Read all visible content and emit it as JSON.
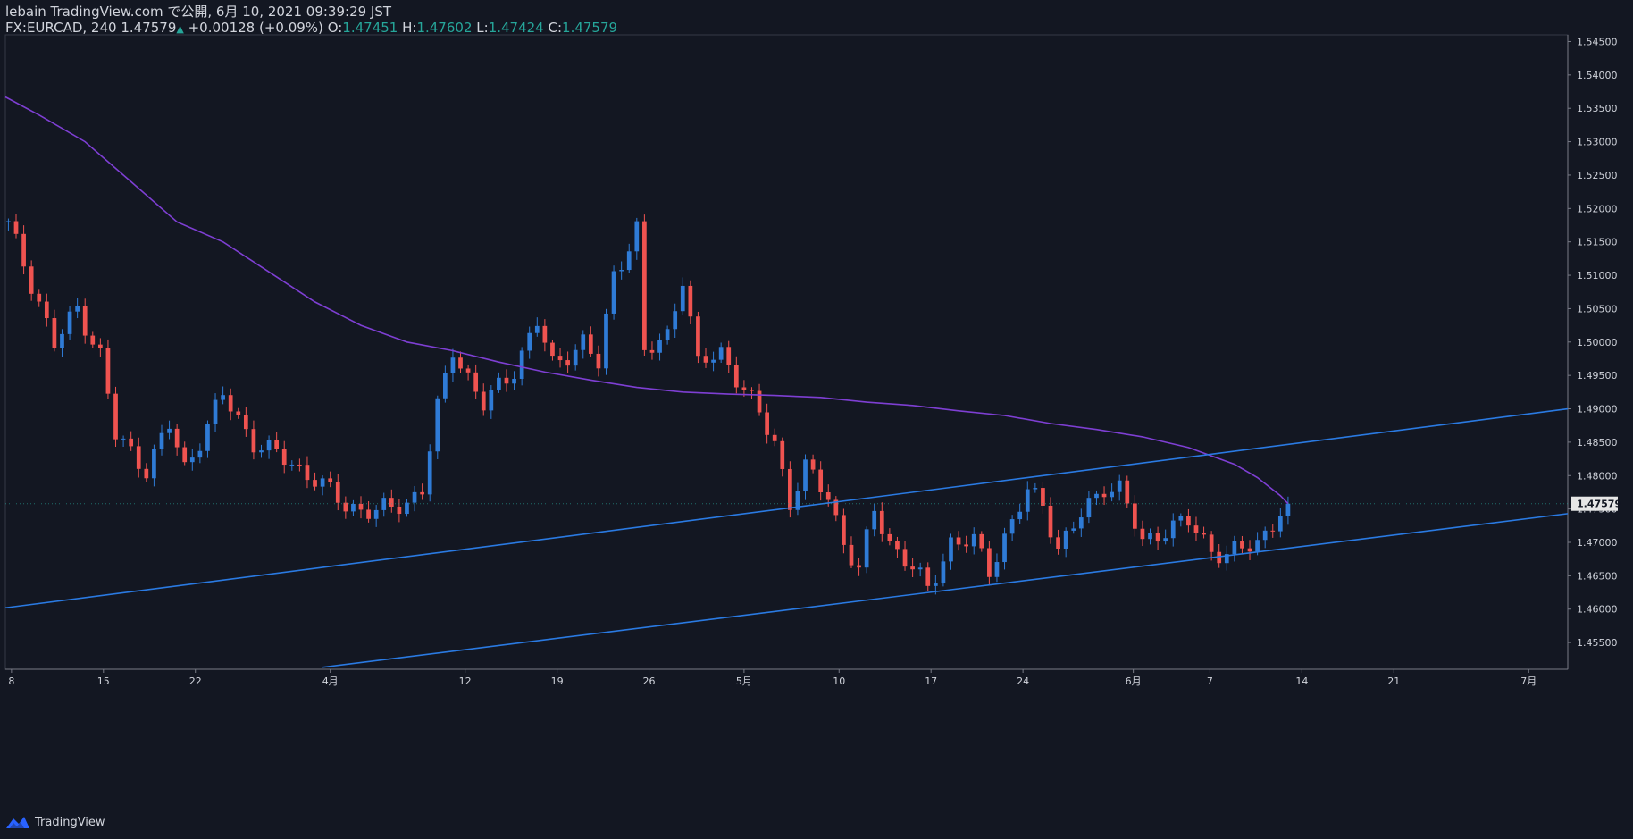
{
  "header": {
    "publish_line": "lebain TradingView.com で公開, 6月 10, 2021 09:39:29 JST",
    "symbol": "FX:EURCAD, 240",
    "last": "1.47579",
    "arrow": "▲",
    "change": "+0.00128 (+0.09%)",
    "o_label": "O:",
    "o_value": "1.47451",
    "h_label": "H:",
    "h_value": "1.47602",
    "l_label": "L:",
    "l_value": "1.47424",
    "c_label": "C:",
    "c_value": "1.47579"
  },
  "footer": {
    "brand": "TradingView"
  },
  "colors": {
    "background": "#131722",
    "up": "#2f7bd6",
    "down": "#ef5350",
    "ma": "#7e3fd3",
    "trendline": "#2a7ae2",
    "axis_text": "#d1d4dc",
    "price_label_bg": "#e6e6e6"
  },
  "chart_data": {
    "type": "candlestick",
    "symbol": "FX:EURCAD",
    "interval": "240",
    "ylim": [
      1.451,
      1.546
    ],
    "y_ticks": [
      "1.45500",
      "1.46000",
      "1.46500",
      "1.47000",
      "1.47500",
      "1.48000",
      "1.48500",
      "1.49000",
      "1.49500",
      "1.50000",
      "1.50500",
      "1.51000",
      "1.51500",
      "1.52000",
      "1.52500",
      "1.53000",
      "1.53500",
      "1.54000",
      "1.54500"
    ],
    "x_ticks": [
      {
        "label": "8",
        "x": 0.4
      },
      {
        "label": "15",
        "x": 12.4
      },
      {
        "label": "22",
        "x": 24.4
      },
      {
        "label": "4月",
        "x": 42.0
      },
      {
        "label": "12",
        "x": 59.6
      },
      {
        "label": "19",
        "x": 71.6
      },
      {
        "label": "26",
        "x": 83.6
      },
      {
        "label": "5月",
        "x": 96.0
      },
      {
        "label": "10",
        "x": 108.4
      },
      {
        "label": "17",
        "x": 120.4
      },
      {
        "label": "24",
        "x": 132.4
      },
      {
        "label": "6月",
        "x": 146.8
      },
      {
        "label": "7",
        "x": 156.8
      },
      {
        "label": "14",
        "x": 168.8
      },
      {
        "label": "21",
        "x": 180.8
      },
      {
        "label": "7月",
        "x": 198.4
      }
    ],
    "x_range": [
      -0.4,
      203.5
    ],
    "last_price": "1.47579",
    "last_price_value": 1.47579,
    "trendlines": [
      {
        "name": "upper-channel-line",
        "x1": -0.4,
        "y1": 1.4602,
        "x2": 203.5,
        "y2": 1.49
      },
      {
        "name": "lower-channel-line",
        "x1": 41.0,
        "y1": 1.4513,
        "x2": 203.5,
        "y2": 1.4743
      }
    ],
    "moving_average": {
      "name": "ma",
      "points": [
        [
          -0.4,
          1.5367
        ],
        [
          4,
          1.534
        ],
        [
          10,
          1.53
        ],
        [
          16,
          1.524
        ],
        [
          22,
          1.518
        ],
        [
          28,
          1.515
        ],
        [
          34,
          1.5105
        ],
        [
          40,
          1.506
        ],
        [
          46,
          1.5025
        ],
        [
          52,
          1.5
        ],
        [
          58,
          1.4987
        ],
        [
          64,
          1.497
        ],
        [
          70,
          1.4955
        ],
        [
          76,
          1.4943
        ],
        [
          82,
          1.4932
        ],
        [
          88,
          1.4925
        ],
        [
          94,
          1.4922
        ],
        [
          100,
          1.492
        ],
        [
          106,
          1.4917
        ],
        [
          112,
          1.491
        ],
        [
          118,
          1.4905
        ],
        [
          124,
          1.4897
        ],
        [
          130,
          1.489
        ],
        [
          136,
          1.4878
        ],
        [
          142,
          1.4869
        ],
        [
          148,
          1.4858
        ],
        [
          154,
          1.4842
        ],
        [
          160,
          1.4817
        ],
        [
          163,
          1.4797
        ],
        [
          166,
          1.477
        ],
        [
          167,
          1.4758
        ]
      ]
    },
    "anchors": [
      [
        0,
        1.5175
      ],
      [
        4,
        1.506
      ],
      [
        6,
        1.4995
      ],
      [
        9,
        1.505
      ],
      [
        12,
        1.498
      ],
      [
        14,
        1.486
      ],
      [
        18,
        1.481
      ],
      [
        21,
        1.4875
      ],
      [
        23,
        1.481
      ],
      [
        28,
        1.492
      ],
      [
        32,
        1.485
      ],
      [
        36,
        1.4825
      ],
      [
        40,
        1.4795
      ],
      [
        44,
        1.4755
      ],
      [
        48,
        1.4745
      ],
      [
        52,
        1.476
      ],
      [
        54,
        1.478
      ],
      [
        56,
        1.49
      ],
      [
        58,
        1.499
      ],
      [
        62,
        1.4905
      ],
      [
        66,
        1.496
      ],
      [
        69,
        1.503
      ],
      [
        71,
        1.4965
      ],
      [
        75,
        1.5
      ],
      [
        77,
        1.4965
      ],
      [
        79,
        1.51
      ],
      [
        82,
        1.517
      ],
      [
        83,
        1.498
      ],
      [
        86,
        1.501
      ],
      [
        88,
        1.51
      ],
      [
        90,
        1.4965
      ],
      [
        93,
        1.4985
      ],
      [
        96,
        1.493
      ],
      [
        100,
        1.485
      ],
      [
        102,
        1.476
      ],
      [
        104,
        1.481
      ],
      [
        107,
        1.477
      ],
      [
        109,
        1.47
      ],
      [
        111,
        1.4655
      ],
      [
        113,
        1.475
      ],
      [
        115,
        1.47
      ],
      [
        118,
        1.466
      ],
      [
        120,
        1.463
      ],
      [
        123,
        1.47
      ],
      [
        126,
        1.47
      ],
      [
        128,
        1.466
      ],
      [
        131,
        1.473
      ],
      [
        133,
        1.4775
      ],
      [
        135,
        1.476
      ],
      [
        137,
        1.469
      ],
      [
        140,
        1.474
      ],
      [
        143,
        1.4785
      ],
      [
        145,
        1.478
      ],
      [
        148,
        1.47
      ],
      [
        151,
        1.472
      ],
      [
        154,
        1.473
      ],
      [
        157,
        1.469
      ],
      [
        159,
        1.468
      ],
      [
        163,
        1.47
      ],
      [
        165,
        1.473
      ],
      [
        167,
        1.4758
      ]
    ]
  }
}
